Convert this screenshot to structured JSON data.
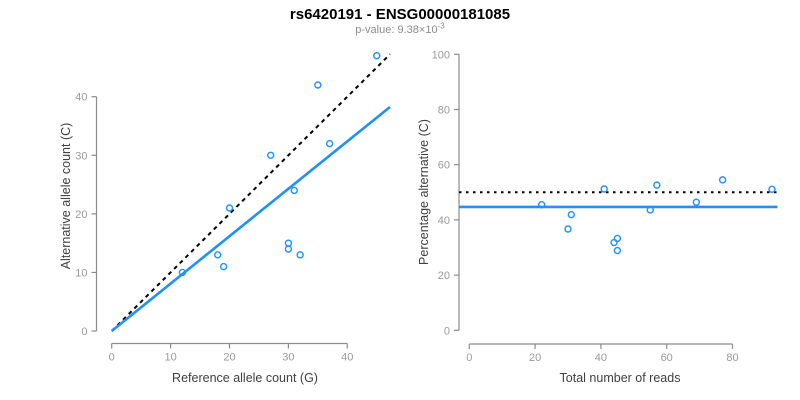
{
  "header": {
    "title": "rs6420191 - ENSG00000181085",
    "pvalue_prefix": "p-value: ",
    "pvalue_mantissa": "9.38",
    "pvalue_times": "×",
    "pvalue_base": "10",
    "pvalue_exponent": "-3"
  },
  "palette": {
    "point_blue": "#1E90FF",
    "fit_blue": "#1E90FF",
    "reference_black": "#000000",
    "axis_gray": "#8c8c8c",
    "tick_label_gray": "#9a9a9a",
    "axis_title_dark": "#404040",
    "subtitle_gray": "#8c8c8c",
    "background": "#ffffff"
  },
  "chart_data": [
    {
      "type": "scatter",
      "name": "allele-count-scatter",
      "title": "",
      "xlabel": "Reference allele count (G)",
      "ylabel": "Alternative allele count (C)",
      "xticks": [
        0,
        10,
        20,
        30,
        40
      ],
      "yticks": [
        0,
        10,
        20,
        30,
        40
      ],
      "xlim": [
        0,
        45
      ],
      "ylim": [
        0,
        47
      ],
      "grid": false,
      "points": [
        {
          "x": 12,
          "y": 10
        },
        {
          "x": 18,
          "y": 13
        },
        {
          "x": 19,
          "y": 11
        },
        {
          "x": 20,
          "y": 21
        },
        {
          "x": 27,
          "y": 30
        },
        {
          "x": 30,
          "y": 14
        },
        {
          "x": 30,
          "y": 15
        },
        {
          "x": 31,
          "y": 24
        },
        {
          "x": 32,
          "y": 13
        },
        {
          "x": 35,
          "y": 42
        },
        {
          "x": 37,
          "y": 32
        },
        {
          "x": 45,
          "y": 47
        }
      ],
      "lines": [
        {
          "name": "identity-line",
          "style": "dashed",
          "color": "#000000",
          "slope": 1,
          "intercept": 0
        },
        {
          "name": "fit-line",
          "style": "solid",
          "color": "#1E90FF",
          "slope": 0.8095,
          "intercept": 0
        }
      ]
    },
    {
      "type": "scatter",
      "name": "percentage-scatter",
      "title": "",
      "xlabel": "Total number of reads",
      "ylabel": "Percentage alternative (C)",
      "xticks": [
        0,
        20,
        40,
        60,
        80
      ],
      "yticks": [
        0,
        20,
        40,
        60,
        80,
        100
      ],
      "xlim": [
        0,
        92
      ],
      "ylim": [
        0,
        100
      ],
      "grid": false,
      "points": [
        {
          "x": 22,
          "y": 45.5
        },
        {
          "x": 30,
          "y": 36.7
        },
        {
          "x": 31,
          "y": 41.9
        },
        {
          "x": 41,
          "y": 51.2
        },
        {
          "x": 44,
          "y": 31.8
        },
        {
          "x": 45,
          "y": 33.3
        },
        {
          "x": 45,
          "y": 28.9
        },
        {
          "x": 55,
          "y": 43.6
        },
        {
          "x": 57,
          "y": 52.6
        },
        {
          "x": 69,
          "y": 46.4
        },
        {
          "x": 77,
          "y": 54.5
        },
        {
          "x": 92,
          "y": 51.1
        }
      ],
      "lines": [
        {
          "name": "null-50pct-line",
          "style": "dotted",
          "color": "#000000",
          "y": 50
        },
        {
          "name": "fit-line",
          "style": "solid",
          "color": "#1E90FF",
          "y": 44.7
        }
      ]
    }
  ]
}
